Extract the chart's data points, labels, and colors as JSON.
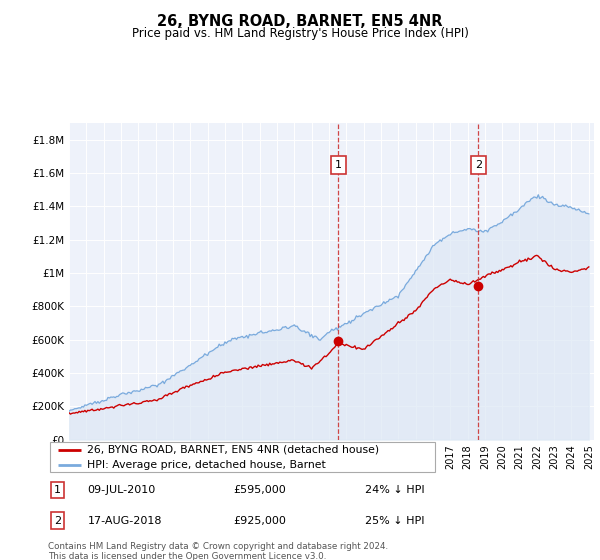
{
  "title": "26, BYNG ROAD, BARNET, EN5 4NR",
  "subtitle": "Price paid vs. HM Land Registry's House Price Index (HPI)",
  "legend_label_red": "26, BYNG ROAD, BARNET, EN5 4NR (detached house)",
  "legend_label_blue": "HPI: Average price, detached house, Barnet",
  "annotation1_date": "09-JUL-2010",
  "annotation1_price": "£595,000",
  "annotation1_hpi": "24% ↓ HPI",
  "annotation2_date": "17-AUG-2018",
  "annotation2_price": "£925,000",
  "annotation2_hpi": "25% ↓ HPI",
  "footer": "Contains HM Land Registry data © Crown copyright and database right 2024.\nThis data is licensed under the Open Government Licence v3.0.",
  "ylim": [
    0,
    1900000
  ],
  "yticks": [
    0,
    200000,
    400000,
    600000,
    800000,
    1000000,
    1200000,
    1400000,
    1600000,
    1800000
  ],
  "ytick_labels": [
    "£0",
    "£200K",
    "£400K",
    "£600K",
    "£800K",
    "£1M",
    "£1.2M",
    "£1.4M",
    "£1.6M",
    "£1.8M"
  ],
  "plot_bg": "#eef2fa",
  "red_color": "#cc0000",
  "blue_color": "#7aaadd",
  "blue_fill": "#dde8f5",
  "sale1_year": 2010.54,
  "sale1_price": 595000,
  "sale2_year": 2018.63,
  "sale2_price": 925000
}
